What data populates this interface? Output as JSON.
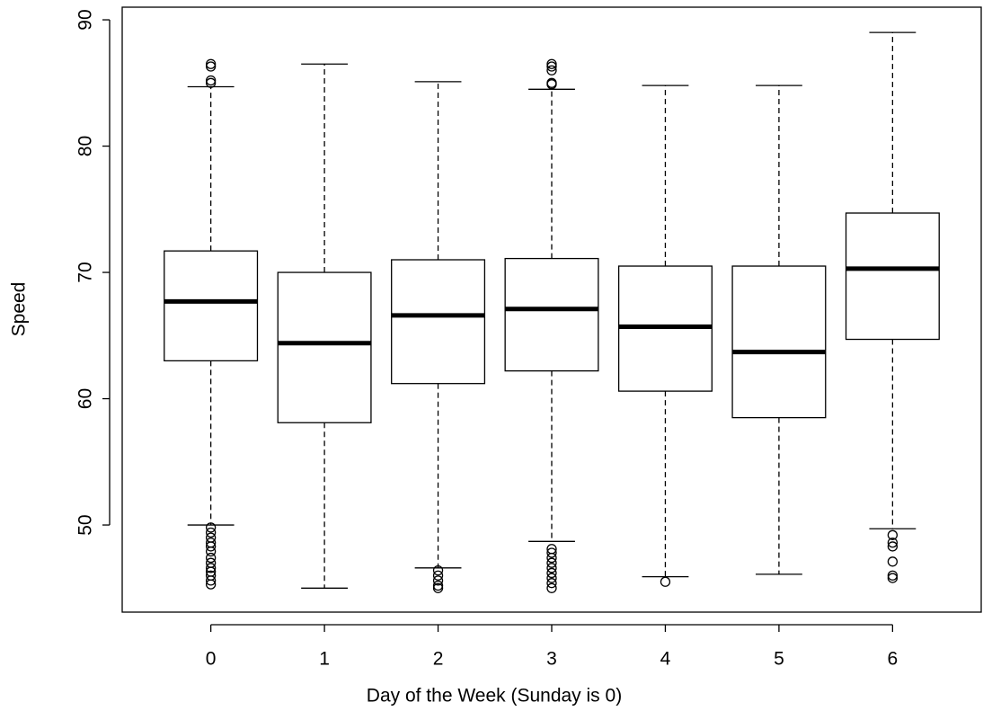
{
  "chart_data": {
    "type": "boxplot",
    "xlabel": "Day of the Week (Sunday is 0)",
    "ylabel": "Speed",
    "categories": [
      "0",
      "1",
      "2",
      "3",
      "4",
      "5",
      "6"
    ],
    "boxes": [
      {
        "low": 50.0,
        "q1": 63.0,
        "median": 67.7,
        "q3": 71.7,
        "high": 84.7,
        "outliers": [
          49.8,
          49.4,
          49.0,
          48.6,
          48.3,
          47.9,
          47.4,
          47.0,
          46.6,
          46.3,
          46.0,
          45.6,
          45.3,
          85.0,
          85.2,
          86.3,
          86.5
        ]
      },
      {
        "low": 45.0,
        "q1": 58.1,
        "median": 64.4,
        "q3": 70.0,
        "high": 86.5,
        "outliers": []
      },
      {
        "low": 46.6,
        "q1": 61.2,
        "median": 66.6,
        "q3": 71.0,
        "high": 85.1,
        "outliers": [
          46.4,
          46.0,
          45.6,
          45.2,
          45.0
        ]
      },
      {
        "low": 48.7,
        "q1": 62.2,
        "median": 67.1,
        "q3": 71.1,
        "high": 84.5,
        "outliers": [
          48.1,
          47.8,
          47.4,
          47.0,
          46.6,
          46.2,
          45.8,
          45.4,
          45.0,
          84.9,
          85.0,
          86.0,
          86.3,
          86.5
        ]
      },
      {
        "low": 45.9,
        "q1": 60.6,
        "median": 65.7,
        "q3": 70.5,
        "high": 84.8,
        "outliers": [
          45.5
        ]
      },
      {
        "low": 46.1,
        "q1": 58.5,
        "median": 63.7,
        "q3": 70.5,
        "high": 84.8,
        "outliers": []
      },
      {
        "low": 49.7,
        "q1": 64.7,
        "median": 70.3,
        "q3": 74.7,
        "high": 89.0,
        "outliers": [
          49.2,
          48.6,
          48.3,
          47.1,
          46.0,
          45.8
        ]
      }
    ],
    "ylim": [
      43.1,
      91.0
    ],
    "yticks": [
      50,
      60,
      70,
      80,
      90
    ]
  }
}
